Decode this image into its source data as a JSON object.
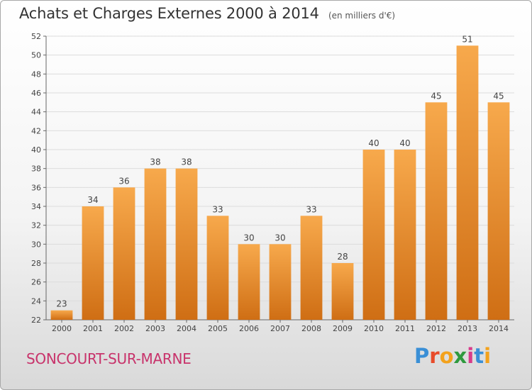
{
  "header": {
    "title": "Achats et Charges Externes 2000 à 2014",
    "subtitle": "(en milliers d'€)"
  },
  "footer": {
    "commune": "SONCOURT-SUR-MARNE",
    "brand": "Proxiti"
  },
  "colors": {
    "bar_light": "#f7a94c",
    "bar_dark": "#cf6e14",
    "commune_text": "#c8336b"
  },
  "chart_data": {
    "type": "bar",
    "title": "Achats et Charges Externes 2000 à 2014",
    "subtitle": "(en milliers d'€)",
    "categories": [
      "2000",
      "2001",
      "2002",
      "2003",
      "2004",
      "2005",
      "2006",
      "2007",
      "2008",
      "2009",
      "2010",
      "2011",
      "2012",
      "2013",
      "2014"
    ],
    "values": [
      23,
      34,
      36,
      38,
      38,
      33,
      30,
      30,
      33,
      28,
      40,
      40,
      45,
      51,
      45
    ],
    "ylim": [
      22,
      52
    ],
    "yticks": [
      22,
      24,
      26,
      28,
      30,
      32,
      34,
      36,
      38,
      40,
      42,
      44,
      46,
      48,
      50,
      52
    ],
    "grid": true,
    "data_labels": true
  }
}
